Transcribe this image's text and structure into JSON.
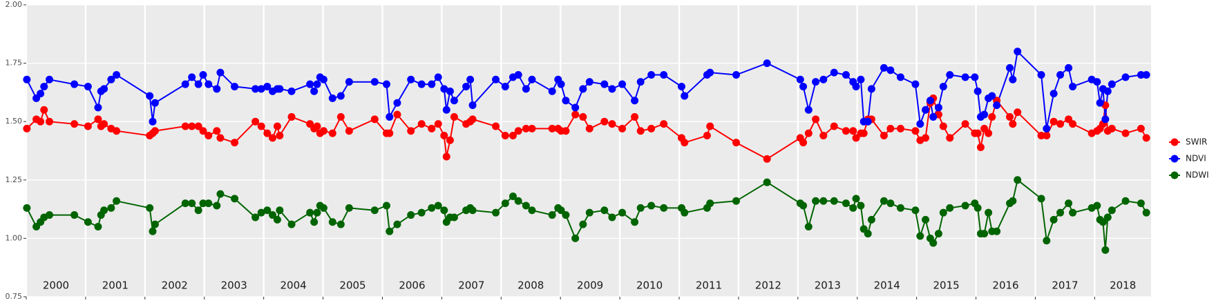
{
  "chart_data": {
    "type": "line",
    "x": [
      2000.01,
      2000.17,
      2000.24,
      2000.3,
      2000.39,
      2000.81,
      2001.04,
      2001.21,
      2001.26,
      2001.31,
      2001.43,
      2001.52,
      2002.08,
      2002.13,
      2002.17,
      2002.68,
      2002.79,
      2002.9,
      2002.98,
      2003.07,
      2003.21,
      2003.27,
      2003.51,
      2003.86,
      2003.96,
      2004.06,
      2004.15,
      2004.23,
      2004.27,
      2004.47,
      2004.78,
      2004.85,
      2004.9,
      2004.95,
      2005.01,
      2005.16,
      2005.3,
      2005.44,
      2005.87,
      2006.07,
      2006.12,
      2006.25,
      2006.48,
      2006.66,
      2006.83,
      2006.94,
      2007.04,
      2007.08,
      2007.14,
      2007.21,
      2007.41,
      2007.48,
      2007.52,
      2007.91,
      2008.07,
      2008.2,
      2008.29,
      2008.42,
      2008.52,
      2008.86,
      2008.96,
      2009.01,
      2009.09,
      2009.25,
      2009.38,
      2009.49,
      2009.74,
      2009.87,
      2010.04,
      2010.25,
      2010.35,
      2010.53,
      2010.74,
      2011.04,
      2011.09,
      2011.47,
      2011.52,
      2011.96,
      2012.48,
      2013.04,
      2013.09,
      2013.18,
      2013.3,
      2013.43,
      2013.61,
      2013.81,
      2013.93,
      2013.98,
      2014.06,
      2014.11,
      2014.18,
      2014.24,
      2014.45,
      2014.56,
      2014.73,
      2014.98,
      2015.06,
      2015.15,
      2015.23,
      2015.28,
      2015.37,
      2015.45,
      2015.56,
      2015.82,
      2015.98,
      2016.03,
      2016.08,
      2016.14,
      2016.21,
      2016.27,
      2016.35,
      2016.57,
      2016.62,
      2016.7,
      2017.1,
      2017.19,
      2017.31,
      2017.42,
      2017.56,
      2017.63,
      2017.95,
      2018.04,
      2018.09,
      2018.14,
      2018.18,
      2018.22,
      2018.29,
      2018.52,
      2018.78,
      2018.87
    ],
    "series": [
      {
        "name": "SWIR",
        "color": "#ff0000",
        "values": [
          1.47,
          1.51,
          1.5,
          1.55,
          1.5,
          1.49,
          1.48,
          1.51,
          1.48,
          1.49,
          1.47,
          1.46,
          1.44,
          1.45,
          1.46,
          1.48,
          1.48,
          1.48,
          1.46,
          1.44,
          1.46,
          1.43,
          1.41,
          1.5,
          1.48,
          1.45,
          1.43,
          1.48,
          1.44,
          1.52,
          1.49,
          1.47,
          1.48,
          1.45,
          1.46,
          1.45,
          1.52,
          1.46,
          1.51,
          1.45,
          1.45,
          1.53,
          1.46,
          1.49,
          1.47,
          1.49,
          1.44,
          1.35,
          1.42,
          1.52,
          1.49,
          1.5,
          1.51,
          1.48,
          1.44,
          1.44,
          1.46,
          1.47,
          1.47,
          1.47,
          1.47,
          1.46,
          1.46,
          1.53,
          1.52,
          1.47,
          1.5,
          1.49,
          1.47,
          1.52,
          1.46,
          1.47,
          1.49,
          1.43,
          1.41,
          1.44,
          1.48,
          1.41,
          1.34,
          1.43,
          1.41,
          1.45,
          1.51,
          1.44,
          1.48,
          1.46,
          1.46,
          1.43,
          1.45,
          1.45,
          1.51,
          1.51,
          1.44,
          1.47,
          1.47,
          1.46,
          1.42,
          1.43,
          1.58,
          1.6,
          1.53,
          1.48,
          1.43,
          1.49,
          1.45,
          1.45,
          1.39,
          1.47,
          1.45,
          1.52,
          1.59,
          1.52,
          1.49,
          1.54,
          1.44,
          1.44,
          1.5,
          1.49,
          1.51,
          1.49,
          1.45,
          1.46,
          1.47,
          1.49,
          1.57,
          1.46,
          1.47,
          1.45,
          1.47,
          1.43
        ]
      },
      {
        "name": "NDVI",
        "color": "#0000ff",
        "values": [
          1.68,
          1.6,
          1.62,
          1.65,
          1.68,
          1.66,
          1.65,
          1.56,
          1.63,
          1.64,
          1.68,
          1.7,
          1.61,
          1.5,
          1.58,
          1.66,
          1.69,
          1.66,
          1.7,
          1.66,
          1.64,
          1.71,
          1.65,
          1.64,
          1.64,
          1.65,
          1.63,
          1.64,
          1.64,
          1.63,
          1.66,
          1.63,
          1.66,
          1.69,
          1.68,
          1.6,
          1.61,
          1.67,
          1.67,
          1.66,
          1.52,
          1.58,
          1.68,
          1.66,
          1.66,
          1.69,
          1.64,
          1.55,
          1.63,
          1.59,
          1.65,
          1.68,
          1.57,
          1.68,
          1.65,
          1.69,
          1.7,
          1.64,
          1.68,
          1.63,
          1.68,
          1.66,
          1.59,
          1.56,
          1.64,
          1.67,
          1.66,
          1.64,
          1.66,
          1.59,
          1.67,
          1.7,
          1.7,
          1.65,
          1.61,
          1.7,
          1.71,
          1.7,
          1.75,
          1.68,
          1.65,
          1.55,
          1.67,
          1.68,
          1.71,
          1.7,
          1.67,
          1.65,
          1.68,
          1.5,
          1.5,
          1.64,
          1.73,
          1.72,
          1.69,
          1.66,
          1.49,
          1.55,
          1.59,
          1.52,
          1.56,
          1.65,
          1.7,
          1.69,
          1.69,
          1.63,
          1.52,
          1.53,
          1.6,
          1.61,
          1.57,
          1.73,
          1.68,
          1.8,
          1.7,
          1.47,
          1.62,
          1.7,
          1.73,
          1.65,
          1.68,
          1.67,
          1.58,
          1.64,
          1.51,
          1.63,
          1.66,
          1.69,
          1.7,
          1.7
        ]
      },
      {
        "name": "NDWI",
        "color": "#006400",
        "values": [
          1.13,
          1.05,
          1.07,
          1.09,
          1.1,
          1.1,
          1.07,
          1.05,
          1.1,
          1.12,
          1.13,
          1.16,
          1.13,
          1.03,
          1.06,
          1.15,
          1.15,
          1.12,
          1.15,
          1.15,
          1.14,
          1.19,
          1.17,
          1.09,
          1.11,
          1.12,
          1.1,
          1.08,
          1.12,
          1.06,
          1.11,
          1.07,
          1.11,
          1.14,
          1.13,
          1.07,
          1.06,
          1.13,
          1.12,
          1.14,
          1.03,
          1.06,
          1.1,
          1.11,
          1.13,
          1.14,
          1.12,
          1.07,
          1.09,
          1.09,
          1.12,
          1.13,
          1.12,
          1.11,
          1.15,
          1.18,
          1.16,
          1.14,
          1.12,
          1.1,
          1.13,
          1.12,
          1.1,
          1.0,
          1.06,
          1.11,
          1.12,
          1.09,
          1.11,
          1.07,
          1.13,
          1.14,
          1.13,
          1.13,
          1.11,
          1.13,
          1.15,
          1.16,
          1.24,
          1.15,
          1.14,
          1.05,
          1.16,
          1.16,
          1.16,
          1.15,
          1.13,
          1.17,
          1.14,
          1.04,
          1.02,
          1.08,
          1.16,
          1.15,
          1.13,
          1.12,
          1.01,
          1.08,
          1.0,
          0.98,
          1.02,
          1.11,
          1.13,
          1.14,
          1.15,
          1.13,
          1.02,
          1.02,
          1.11,
          1.03,
          1.03,
          1.15,
          1.16,
          1.25,
          1.17,
          0.99,
          1.08,
          1.11,
          1.15,
          1.11,
          1.13,
          1.14,
          1.08,
          1.07,
          0.95,
          1.09,
          1.12,
          1.16,
          1.15,
          1.11
        ]
      }
    ],
    "xlim": [
      2000.0,
      2018.95
    ],
    "xticks": [
      2000,
      2001,
      2002,
      2003,
      2004,
      2005,
      2006,
      2007,
      2008,
      2009,
      2010,
      2011,
      2012,
      2013,
      2014,
      2015,
      2016,
      2017,
      2018
    ],
    "year_labels": [
      "2000",
      "2001",
      "2002",
      "2003",
      "2004",
      "2005",
      "2006",
      "2007",
      "2008",
      "2009",
      "2010",
      "2011",
      "2012",
      "2013",
      "2014",
      "2015",
      "2016",
      "2017",
      "2018"
    ],
    "ylim": [
      0.75,
      2.0
    ],
    "yticks": [
      0.75,
      {
        "value": 1.0,
        "label": "1.00"
      },
      1.25,
      {
        "value": 1.5,
        "label": "1.50"
      },
      1.75,
      {
        "value": 2.0,
        "label": "2.00"
      }
    ],
    "grid": true,
    "legend": "right"
  }
}
